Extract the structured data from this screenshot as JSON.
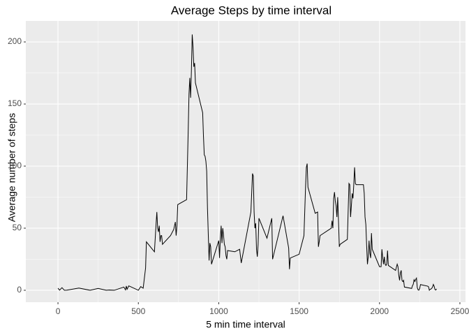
{
  "chart_data": {
    "type": "line",
    "title": "Average Steps by time interval",
    "x_label": "5 min time interval",
    "y_label": "Average number of steps",
    "x": [
      0,
      10,
      25,
      40,
      55,
      130,
      200,
      250,
      300,
      320,
      350,
      410,
      420,
      425,
      430,
      440,
      450,
      500,
      515,
      520,
      530,
      545,
      550,
      600,
      610,
      615,
      620,
      625,
      630,
      635,
      640,
      645,
      650,
      700,
      720,
      730,
      735,
      740,
      745,
      800,
      810,
      815,
      820,
      825,
      830,
      835,
      840,
      845,
      850,
      855,
      900,
      905,
      910,
      915,
      920,
      925,
      930,
      935,
      940,
      945,
      950,
      955,
      1000,
      1005,
      1010,
      1015,
      1020,
      1025,
      1030,
      1035,
      1040,
      1045,
      1050,
      1055,
      1100,
      1130,
      1140,
      1200,
      1210,
      1215,
      1220,
      1225,
      1230,
      1235,
      1240,
      1245,
      1250,
      1300,
      1330,
      1335,
      1400,
      1435,
      1440,
      1445,
      1500,
      1530,
      1540,
      1545,
      1550,
      1555,
      1600,
      1615,
      1620,
      1625,
      1630,
      1700,
      1705,
      1710,
      1715,
      1720,
      1725,
      1730,
      1735,
      1740,
      1745,
      1750,
      1755,
      1800,
      1810,
      1815,
      1820,
      1825,
      1830,
      1835,
      1840,
      1845,
      1850,
      1855,
      1900,
      1905,
      1910,
      1915,
      1920,
      1925,
      1930,
      1935,
      1940,
      1945,
      1950,
      1955,
      2000,
      2005,
      2010,
      2015,
      2020,
      2025,
      2030,
      2035,
      2040,
      2045,
      2050,
      2055,
      2100,
      2110,
      2115,
      2120,
      2125,
      2130,
      2135,
      2140,
      2145,
      2150,
      2155,
      2200,
      2205,
      2210,
      2215,
      2220,
      2225,
      2230,
      2235,
      2240,
      2245,
      2250,
      2255,
      2300,
      2305,
      2310,
      2315,
      2320,
      2325,
      2330,
      2335,
      2340,
      2345,
      2350,
      2355
    ],
    "series": [
      {
        "color": "#000000",
        "values": [
          1.7,
          0.1,
          2.1,
          0,
          0.1,
          1.8,
          0,
          1.5,
          0,
          0.2,
          0,
          2.6,
          0.3,
          3.4,
          0.8,
          3.5,
          3,
          0,
          3,
          2.5,
          1.7,
          18,
          39,
          31,
          53,
          63,
          50,
          47,
          52,
          39,
          44,
          44,
          37,
          44,
          49,
          55,
          44,
          52,
          69,
          73,
          128,
          158,
          171,
          155,
          177,
          206,
          196,
          180,
          183,
          167,
          143,
          124,
          109,
          108,
          104,
          96,
          66,
          45,
          24,
          38,
          35,
          21,
          40,
          26,
          42,
          52,
          38,
          50,
          44,
          37,
          35,
          28,
          25,
          32,
          31,
          33,
          22,
          63,
          94,
          92,
          63,
          50,
          54,
          33,
          27,
          37,
          58,
          42,
          58,
          25,
          60,
          34,
          17,
          26,
          29,
          44,
          83,
          99,
          102,
          83,
          62,
          63,
          35,
          39,
          44,
          50,
          56,
          50,
          74,
          79,
          72,
          68,
          59,
          75,
          56,
          35,
          37,
          41,
          86,
          85,
          59,
          68,
          78,
          74,
          85,
          99,
          86,
          85,
          85,
          78,
          59,
          53,
          36,
          21,
          27,
          40,
          30,
          26,
          46,
          33,
          19,
          19,
          19,
          33,
          26,
          21,
          27,
          21,
          20,
          21,
          32,
          20,
          16,
          21,
          19,
          12,
          8,
          14,
          16,
          8,
          7,
          8,
          2.6,
          1.5,
          3.7,
          4.8,
          8.5,
          7.1,
          8.7,
          9.8,
          2.2,
          0.3,
          0.1,
          1.6,
          4.6,
          3.3,
          2.8,
          0,
          0.8,
          1,
          1.6,
          2.6,
          4.7,
          3.3,
          0.6,
          0.2,
          1.1
        ]
      }
    ],
    "xlim": [
      -200,
      2535
    ],
    "ylim": [
      -9.6,
      216.9
    ],
    "xticks": [
      0,
      500,
      1000,
      1500,
      2000,
      2500
    ],
    "yticks": [
      0,
      50,
      100,
      150,
      200
    ],
    "grid": true
  }
}
